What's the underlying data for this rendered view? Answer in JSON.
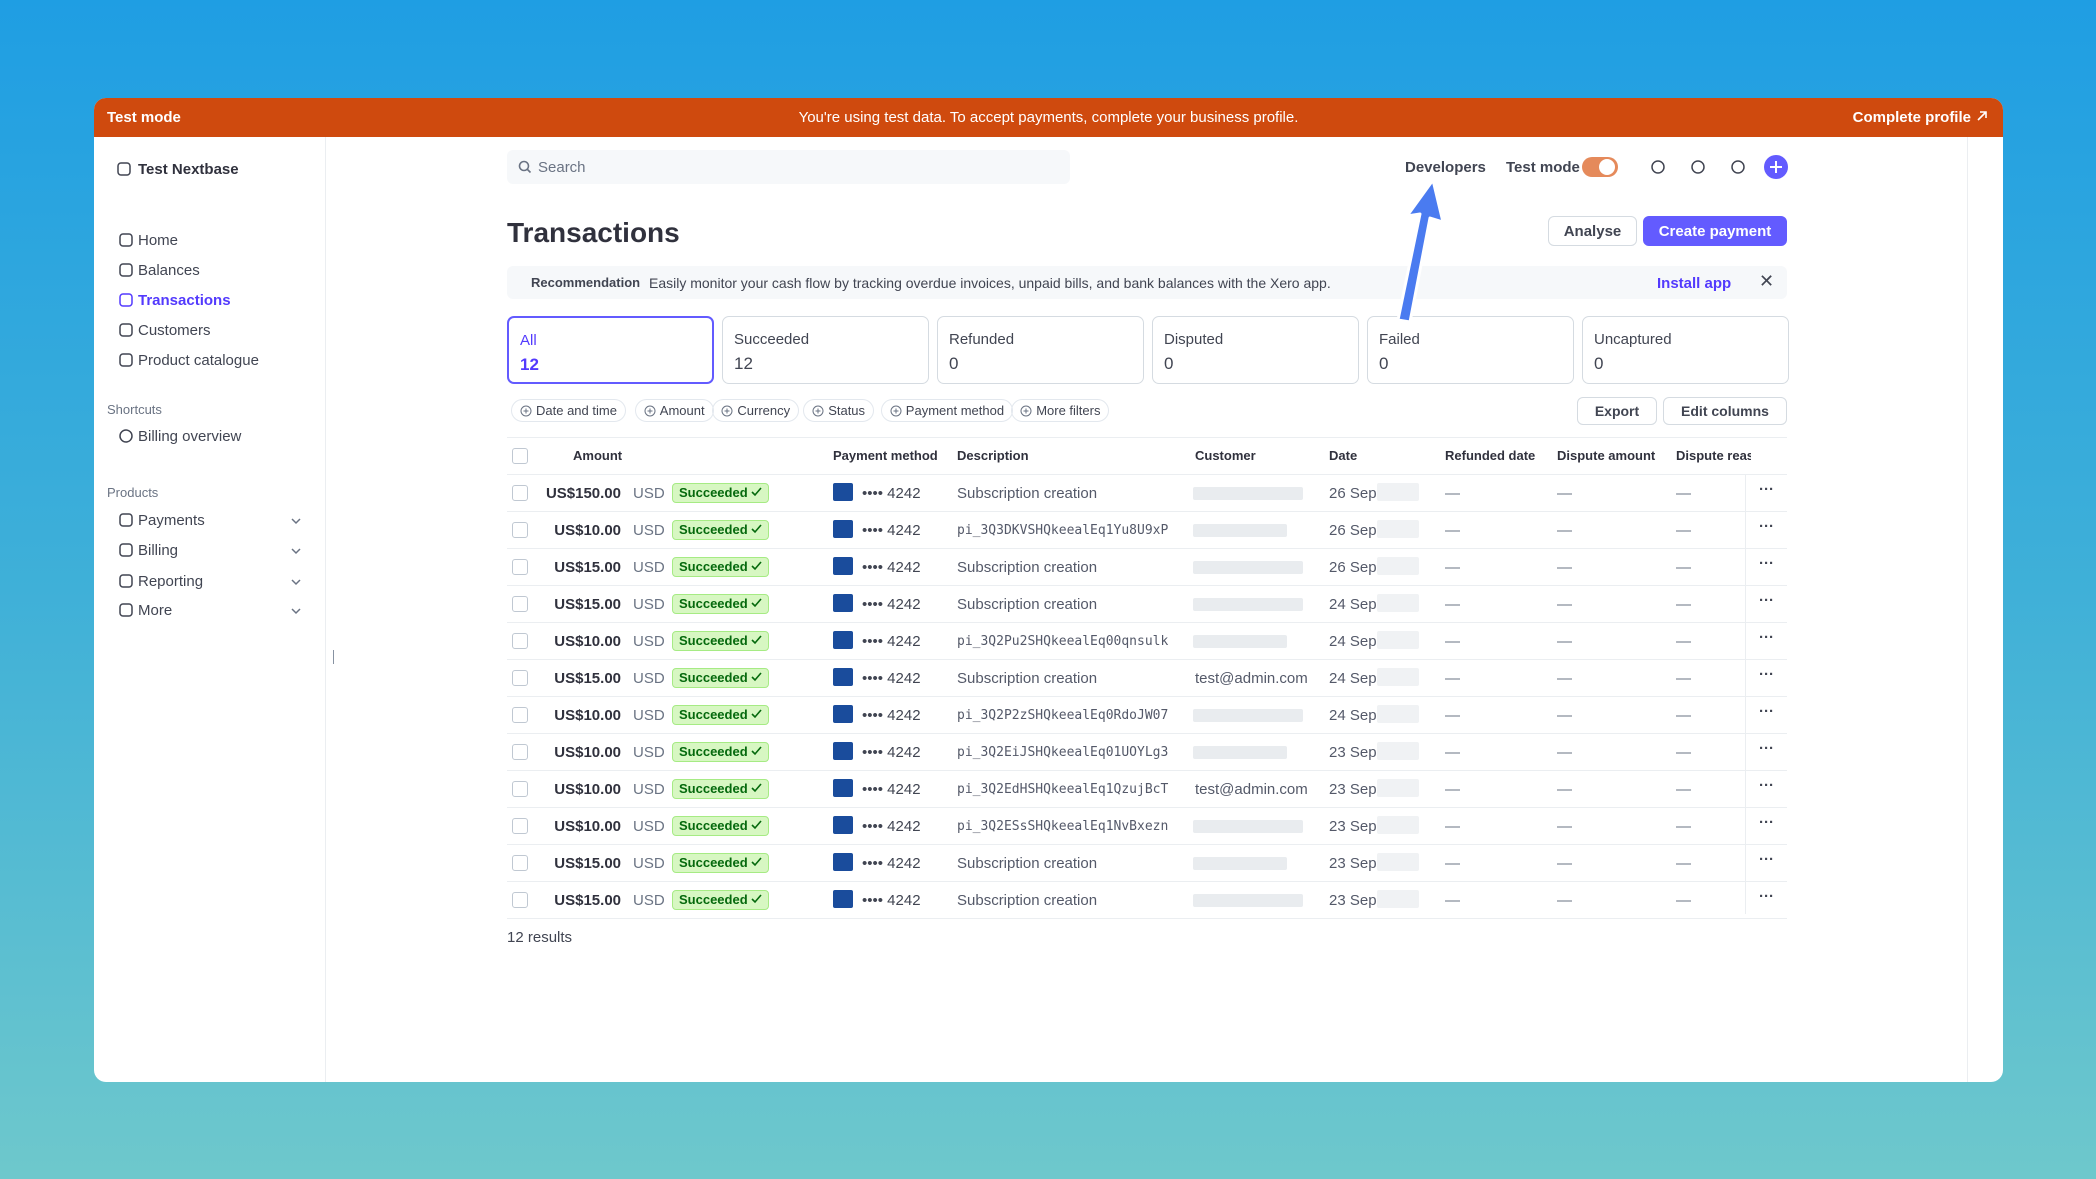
{
  "banner": {
    "label": "Test mode",
    "message": "You're using test data. To accept payments, complete your business profile.",
    "action": "Complete profile"
  },
  "sidebar": {
    "account": "Test Nextbase",
    "nav": [
      "Home",
      "Balances",
      "Transactions",
      "Customers",
      "Product catalogue"
    ],
    "shortcuts_title": "Shortcuts",
    "shortcuts": [
      "Billing overview"
    ],
    "products_title": "Products",
    "products": [
      "Payments",
      "Billing",
      "Reporting",
      "More"
    ]
  },
  "topbar": {
    "search": "Search",
    "developers": "Developers",
    "test_mode": "Test mode"
  },
  "header": {
    "title": "Transactions",
    "buttons": [
      "Analyse",
      "Create payment"
    ]
  },
  "recommendation": {
    "tag": "Recommendation",
    "text": "Easily monitor your cash flow by tracking overdue invoices, unpaid bills, and bank balances with the Xero app.",
    "action": "Install app"
  },
  "tabs": [
    {
      "label": "All",
      "count": 12
    },
    {
      "label": "Succeeded",
      "count": 12
    },
    {
      "label": "Refunded",
      "count": 0
    },
    {
      "label": "Disputed",
      "count": 0
    },
    {
      "label": "Failed",
      "count": 0
    },
    {
      "label": "Uncaptured",
      "count": 0
    }
  ],
  "filters": [
    "Date and time",
    "Amount",
    "Currency",
    "Status",
    "Payment method",
    "More filters"
  ],
  "actions": [
    "Export",
    "Edit columns"
  ],
  "table": {
    "columns": [
      "Amount",
      "Payment method",
      "Description",
      "Customer",
      "Date",
      "Refunded date",
      "Dispute amount",
      "Dispute reas"
    ],
    "rows": [
      [
        "US$150.00",
        "USD",
        "Succeeded",
        "•••• 4242",
        "Subscription creation",
        null,
        "26 Sep,",
        "—",
        "—",
        "—"
      ],
      [
        "US$10.00",
        "USD",
        "Succeeded",
        "•••• 4242",
        "pi_3Q3DKVSHQkeealEq1Yu8U9xP",
        null,
        "26 Sep,",
        "—",
        "—",
        "—"
      ],
      [
        "US$15.00",
        "USD",
        "Succeeded",
        "•••• 4242",
        "Subscription creation",
        null,
        "26 Sep,",
        "—",
        "—",
        "—"
      ],
      [
        "US$15.00",
        "USD",
        "Succeeded",
        "•••• 4242",
        "Subscription creation",
        null,
        "24 Sep,",
        "—",
        "—",
        "—"
      ],
      [
        "US$10.00",
        "USD",
        "Succeeded",
        "•••• 4242",
        "pi_3Q2Pu2SHQkeealEq00qnsulk",
        null,
        "24 Sep,",
        "—",
        "—",
        "—"
      ],
      [
        "US$15.00",
        "USD",
        "Succeeded",
        "•••• 4242",
        "Subscription creation",
        "test@admin.com",
        "24 Sep,",
        "—",
        "—",
        "—"
      ],
      [
        "US$10.00",
        "USD",
        "Succeeded",
        "•••• 4242",
        "pi_3Q2P2zSHQkeealEq0RdoJW07",
        null,
        "24 Sep,",
        "—",
        "—",
        "—"
      ],
      [
        "US$10.00",
        "USD",
        "Succeeded",
        "•••• 4242",
        "pi_3Q2EiJSHQkeealEq01UOYLg3",
        null,
        "23 Sep,",
        "—",
        "—",
        "—"
      ],
      [
        "US$10.00",
        "USD",
        "Succeeded",
        "•••• 4242",
        "pi_3Q2EdHSHQkeealEq1QzujBcT",
        "test@admin.com",
        "23 Sep,",
        "—",
        "—",
        "—"
      ],
      [
        "US$10.00",
        "USD",
        "Succeeded",
        "•••• 4242",
        "pi_3Q2ESsSHQkeealEq1NvBxezn",
        null,
        "23 Sep,",
        "—",
        "—",
        "—"
      ],
      [
        "US$15.00",
        "USD",
        "Succeeded",
        "•••• 4242",
        "Subscription creation",
        null,
        "23 Sep,",
        "—",
        "—",
        "—"
      ],
      [
        "US$15.00",
        "USD",
        "Succeeded",
        "•••• 4242",
        "Subscription creation",
        null,
        "23 Sep,",
        "—",
        "—",
        "—"
      ]
    ],
    "footer": "12 results"
  }
}
